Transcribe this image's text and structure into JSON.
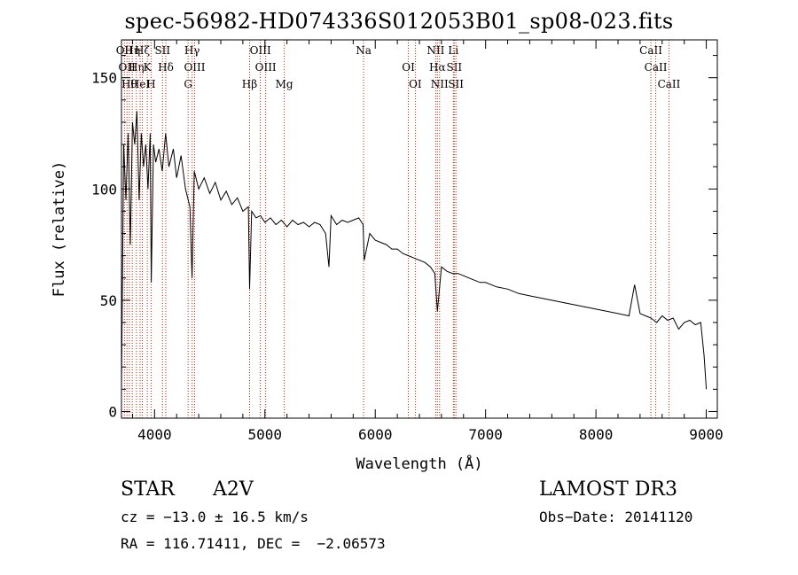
{
  "chart_data": {
    "type": "line",
    "title": "spec-56982-HD074336S012053B01_sp08-023.fits",
    "xlabel": "Wavelength (Å)",
    "ylabel": "Flux (relative)",
    "xlim": [
      3700,
      9100
    ],
    "ylim": [
      -3,
      167
    ],
    "xticks": [
      "4000",
      "5000",
      "6000",
      "7000",
      "8000",
      "9000"
    ],
    "yticks": [
      "0",
      "50",
      "100",
      "150"
    ],
    "series": [
      {
        "name": "spectrum",
        "x": [
          3700,
          3720,
          3740,
          3760,
          3780,
          3800,
          3820,
          3840,
          3860,
          3880,
          3900,
          3920,
          3940,
          3960,
          3970,
          3990,
          4010,
          4040,
          4070,
          4100,
          4130,
          4170,
          4200,
          4240,
          4280,
          4320,
          4340,
          4360,
          4400,
          4450,
          4500,
          4550,
          4600,
          4650,
          4700,
          4750,
          4800,
          4850,
          4861,
          4880,
          4920,
          4960,
          5000,
          5050,
          5100,
          5150,
          5200,
          5250,
          5300,
          5350,
          5400,
          5450,
          5500,
          5550,
          5580,
          5600,
          5650,
          5700,
          5750,
          5800,
          5850,
          5890,
          5900,
          5950,
          6000,
          6050,
          6100,
          6150,
          6200,
          6250,
          6300,
          6350,
          6400,
          6450,
          6500,
          6540,
          6563,
          6600,
          6650,
          6700,
          6750,
          6800,
          6850,
          6900,
          6950,
          7000,
          7050,
          7100,
          7200,
          7300,
          7400,
          7500,
          7600,
          7700,
          7800,
          7900,
          8000,
          8100,
          8200,
          8300,
          8350,
          8400,
          8450,
          8500,
          8550,
          8600,
          8650,
          8700,
          8750,
          8800,
          8850,
          8900,
          8950,
          8980,
          9000
        ],
        "values": [
          10,
          120,
          95,
          125,
          75,
          130,
          120,
          135,
          95,
          125,
          110,
          120,
          100,
          125,
          58,
          120,
          112,
          118,
          108,
          125,
          110,
          118,
          105,
          115,
          100,
          92,
          60,
          108,
          100,
          105,
          98,
          103,
          95,
          99,
          93,
          96,
          90,
          92,
          55,
          90,
          87,
          88,
          85,
          87,
          84,
          86,
          83,
          86,
          84,
          85,
          83,
          85,
          84,
          80,
          65,
          88,
          84,
          86,
          85,
          86,
          87,
          84,
          68,
          80,
          77,
          76,
          75,
          73,
          73,
          71,
          70,
          69,
          68,
          67,
          65,
          62,
          45,
          65,
          63,
          62,
          62,
          61,
          60,
          59,
          58,
          58,
          57,
          56,
          55,
          53,
          52,
          51,
          50,
          49,
          48,
          47,
          46,
          45,
          44,
          43,
          57,
          44,
          43,
          42,
          40,
          43,
          41,
          42,
          37,
          40,
          41,
          39,
          40,
          25,
          10
        ]
      }
    ],
    "lines": [
      {
        "w": 3727,
        "label": "OII"
      },
      {
        "w": 3750,
        "label": "OII"
      },
      {
        "w": 3771,
        "label": "Hθ"
      },
      {
        "w": 3798,
        "label": "Hη"
      },
      {
        "w": 3835,
        "label": "Hη"
      },
      {
        "w": 3869,
        "label": "HeI"
      },
      {
        "w": 3889,
        "label": "Hζ"
      },
      {
        "w": 3934,
        "label": "K"
      },
      {
        "w": 3968,
        "label": "H"
      },
      {
        "w": 4072,
        "label": "SII"
      },
      {
        "w": 4102,
        "label": "Hδ"
      },
      {
        "w": 4304,
        "label": "G"
      },
      {
        "w": 4340,
        "label": "Hγ"
      },
      {
        "w": 4363,
        "label": "OIII"
      },
      {
        "w": 4861,
        "label": "Hβ"
      },
      {
        "w": 4959,
        "label": "OIII"
      },
      {
        "w": 5007,
        "label": "OIII"
      },
      {
        "w": 5175,
        "label": "Mg"
      },
      {
        "w": 5894,
        "label": "Na"
      },
      {
        "w": 6300,
        "label": "OI"
      },
      {
        "w": 6363,
        "label": "OI"
      },
      {
        "w": 6548,
        "label": "NII"
      },
      {
        "w": 6563,
        "label": "Hα"
      },
      {
        "w": 6583,
        "label": "NII"
      },
      {
        "w": 6708,
        "label": "Li"
      },
      {
        "w": 6716,
        "label": "SII"
      },
      {
        "w": 6731,
        "label": "SII"
      },
      {
        "w": 8498,
        "label": "CaII"
      },
      {
        "w": 8542,
        "label": "CaII"
      },
      {
        "w": 8662,
        "label": "CaII"
      }
    ]
  },
  "info": {
    "object_class": "STAR",
    "subclass": "A2V",
    "survey": "LAMOST DR3",
    "redshift": "cz = −13.0 ± 16.5 km/s",
    "obs_date": "Obs−Date: 20141120",
    "coords": "RA = 116.71411, DEC =  −2.06573"
  },
  "colors": {
    "line_marker": "#cc2200",
    "spectrum": "#000000"
  }
}
